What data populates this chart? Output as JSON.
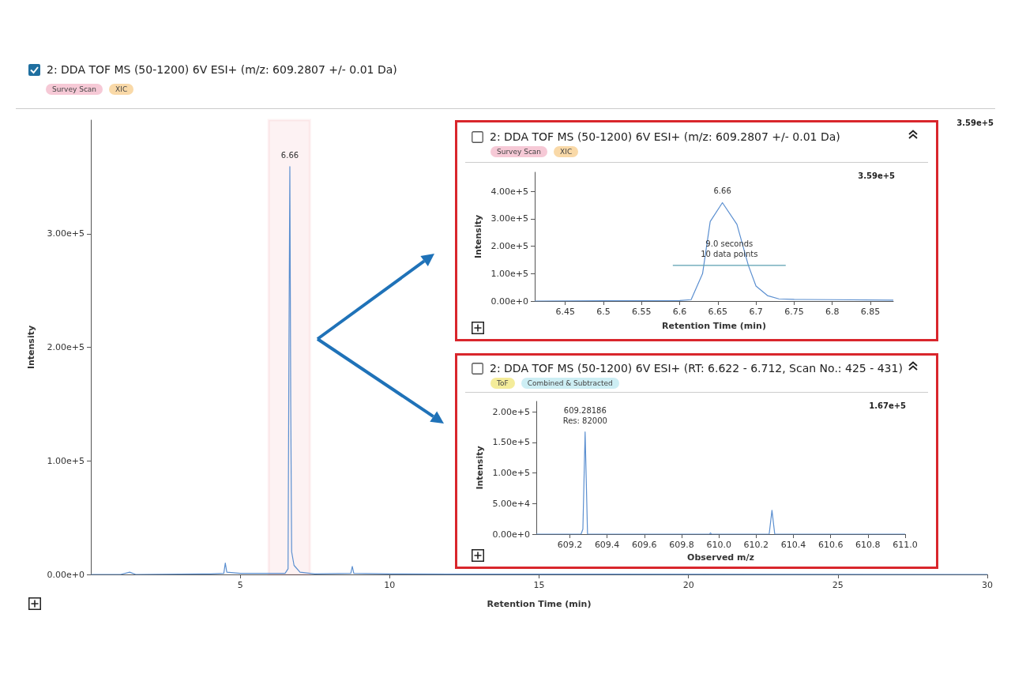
{
  "chart_data": [
    {
      "type": "line",
      "title": "2: DDA TOF MS (50-1200) 6V ESI+ (m/z: 609.2807 +/- 0.01 Da)",
      "xlabel": "Retention Time (min)",
      "ylabel": "Intensity",
      "annotations": [
        "Survey Scan",
        "XIC",
        "3.59e+5",
        {
          "text": "6.66",
          "x": 6.66,
          "y": 359000
        }
      ],
      "series": [
        {
          "color": "#5b8fd0",
          "x": [
            0,
            1.0,
            1.3,
            1.5,
            4.0,
            4.45,
            4.5,
            4.55,
            5.0,
            6.5,
            6.6,
            6.63,
            6.66,
            6.69,
            6.72,
            6.8,
            7.0,
            7.5,
            8.7,
            8.75,
            8.8,
            10,
            12,
            30
          ],
          "values": [
            0,
            0,
            2000,
            0,
            500,
            1000,
            10000,
            2000,
            1000,
            1000,
            5000,
            200000,
            359000,
            150000,
            20000,
            8000,
            2000,
            500,
            1000,
            7000,
            1000,
            500,
            300,
            0
          ]
        }
      ],
      "xlim": [
        0,
        30
      ],
      "xticks": [
        5,
        10,
        15,
        20,
        25,
        30
      ],
      "ylim": [
        0,
        400000
      ],
      "yticks": [
        {
          "value": 0,
          "label": "0.00e+0"
        },
        {
          "value": 100000,
          "label": "1.00e+5"
        },
        {
          "value": 200000,
          "label": "2.00e+5"
        },
        {
          "value": 300000,
          "label": "3.00e+5"
        }
      ],
      "bands": [
        {
          "axis": "x",
          "from": 5.95,
          "to": 7.33,
          "color": "#d9262c"
        }
      ],
      "grid": false,
      "marker": "none"
    },
    {
      "type": "line",
      "title": "2: DDA TOF MS (50-1200) 6V ESI+ (m/z: 609.2807 +/- 0.01 Da)",
      "xlabel": "Retention Time (min)",
      "ylabel": "Intensity",
      "annotations": [
        "Survey Scan",
        "XIC",
        "3.59e+5",
        {
          "text": "6.66",
          "x": 6.656,
          "y": 359000
        },
        {
          "text": "9.0 seconds\n10 data points",
          "x": 6.665,
          "y": 130000
        }
      ],
      "series": [
        {
          "color": "#5b8fd0",
          "x": [
            6.41,
            6.6,
            6.615,
            6.63,
            6.64,
            6.656,
            6.675,
            6.69,
            6.7,
            6.715,
            6.73,
            6.75,
            6.8,
            6.88
          ],
          "values": [
            0,
            2000,
            5000,
            100000,
            290000,
            359000,
            280000,
            130000,
            55000,
            20000,
            8000,
            6000,
            5000,
            3000
          ]
        },
        {
          "color": "#5a9fb0",
          "x": [
            6.591,
            6.739
          ],
          "values": [
            130000,
            130000
          ]
        }
      ],
      "xlim": [
        6.41,
        6.88
      ],
      "xticks": [
        6.45,
        6.5,
        6.55,
        6.6,
        6.65,
        6.7,
        6.75,
        6.8,
        6.85
      ],
      "ylim": [
        0,
        470000
      ],
      "yticks": [
        {
          "value": 0,
          "label": "0.00e+0"
        },
        {
          "value": 100000,
          "label": "1.00e+5"
        },
        {
          "value": 200000,
          "label": "2.00e+5"
        },
        {
          "value": 300000,
          "label": "3.00e+5"
        },
        {
          "value": 400000,
          "label": "4.00e+5"
        }
      ],
      "grid": false,
      "marker": "none"
    },
    {
      "type": "line",
      "title": "2: DDA TOF MS (50-1200) 6V ESI+ (RT: 6.622 - 6.712, Scan No.: 425 - 431)",
      "xlabel": "Observed m/z",
      "ylabel": "Intensity",
      "annotations": [
        "ToF",
        "Combined & Subtracted",
        "1.67e+5",
        {
          "text": "609.28186\nRes: 82000",
          "x": 609.282,
          "y": 167000
        }
      ],
      "series": [
        {
          "color": "#5b8fd0",
          "x": [
            609.02,
            609.26,
            609.27,
            609.282,
            609.295,
            609.95,
            609.955,
            609.96,
            610.27,
            610.285,
            610.3,
            611.0
          ],
          "values": [
            0,
            0,
            8000,
            167000,
            0,
            0,
            2000,
            0,
            0,
            39000,
            0,
            0
          ]
        }
      ],
      "xlim": [
        609.02,
        611.0
      ],
      "xticks": [
        609.2,
        609.4,
        609.6,
        609.8,
        {
          "value": 610,
          "label": "610.0"
        },
        610.2,
        610.4,
        610.6,
        610.8,
        {
          "value": 611,
          "label": "611.0"
        }
      ],
      "ylim": [
        0,
        217000
      ],
      "yticks": [
        {
          "value": 0,
          "label": "0.00e+0"
        },
        {
          "value": 50000,
          "label": "5.00e+4"
        },
        {
          "value": 100000,
          "label": "1.00e+5"
        },
        {
          "value": 150000,
          "label": "1.50e+5"
        },
        {
          "value": 200000,
          "label": "2.00e+5"
        }
      ],
      "grid": false,
      "marker": "none"
    }
  ]
}
